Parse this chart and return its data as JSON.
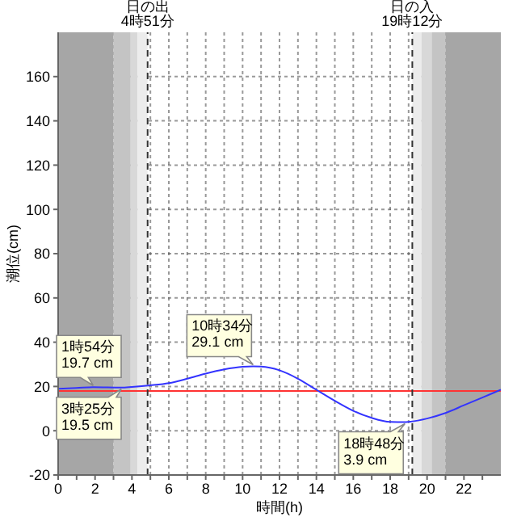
{
  "chart_data": {
    "type": "line",
    "xlabel": "時間(h)",
    "ylabel": "潮位(cm)",
    "x": [
      0,
      1,
      1.9,
      3.42,
      4,
      5,
      6,
      7,
      8,
      9,
      10,
      10.57,
      11,
      12,
      13,
      14,
      15,
      16,
      17,
      18,
      18.8,
      19,
      20,
      21,
      22,
      23,
      24
    ],
    "series": [
      {
        "color": "#3333ff",
        "values": [
          19,
          19.3,
          19.7,
          19.5,
          19.8,
          20.5,
          21.5,
          23.5,
          25.8,
          27.7,
          28.9,
          29.1,
          29,
          27.3,
          23.5,
          18.5,
          13.5,
          9,
          5.8,
          4,
          3.9,
          4,
          5.5,
          8,
          11.5,
          15,
          18.5
        ]
      }
    ],
    "xlim": [
      0,
      24
    ],
    "xticks": [
      0,
      {
        "value": 1,
        "label": null
      },
      2,
      {
        "value": 3,
        "label": null
      },
      4,
      {
        "value": 5,
        "label": null
      },
      6,
      {
        "value": 7,
        "label": null
      },
      8,
      {
        "value": 9,
        "label": null
      },
      10,
      {
        "value": 11,
        "label": null
      },
      12,
      {
        "value": 13,
        "label": null
      },
      14,
      {
        "value": 15,
        "label": null
      },
      16,
      {
        "value": 17,
        "label": null
      },
      18,
      {
        "value": 19,
        "label": null
      },
      20,
      {
        "value": 21,
        "label": null
      },
      22,
      {
        "value": 23,
        "label": null
      }
    ],
    "ylim": [
      -20,
      180
    ],
    "yticks": [
      -20,
      0,
      20,
      40,
      60,
      80,
      100,
      120,
      140,
      160
    ],
    "grid": true,
    "marker": "none",
    "line_style": "solid",
    "ref_lines": [
      {
        "axis": "y",
        "value": 18,
        "color": "#ff3333",
        "line_style": "solid"
      },
      {
        "axis": "x",
        "value": 4.85,
        "label": "日の出\n4時51分",
        "color": "#333333",
        "line_style": "dashed"
      },
      {
        "axis": "x",
        "value": 19.2,
        "label": "日の入\n19時12分",
        "color": "#333333",
        "line_style": "dashed"
      }
    ],
    "bands": [
      {
        "axis": "x",
        "from": 0,
        "to": 3,
        "color": "#a6a6a6"
      },
      {
        "axis": "x",
        "from": 3,
        "to": 3.93,
        "color": "#c4c4c4"
      },
      {
        "axis": "x",
        "from": 3.93,
        "to": 4.3,
        "color": "#d8d8d8"
      },
      {
        "axis": "x",
        "from": 4.3,
        "to": 4.85,
        "color": "#ececec"
      },
      {
        "axis": "x",
        "from": 19.2,
        "to": 19.7,
        "color": "#ececec"
      },
      {
        "axis": "x",
        "from": 19.7,
        "to": 20.25,
        "color": "#d8d8d8"
      },
      {
        "axis": "x",
        "from": 20.25,
        "to": 21,
        "color": "#c4c4c4"
      },
      {
        "axis": "x",
        "from": 21,
        "to": 24,
        "color": "#a6a6a6"
      }
    ],
    "annotations": [
      {
        "text": "1時54分\n19.7 cm",
        "x": 1.9,
        "y": 19.7
      },
      {
        "text": "3時25分\n19.5 cm",
        "x": 3.42,
        "y": 19.5
      },
      {
        "text": "10時34分\n29.1 cm",
        "x": 10.57,
        "y": 29.1
      },
      {
        "text": "18時48分\n3.9 cm",
        "x": 18.8,
        "y": 3.9
      }
    ]
  }
}
